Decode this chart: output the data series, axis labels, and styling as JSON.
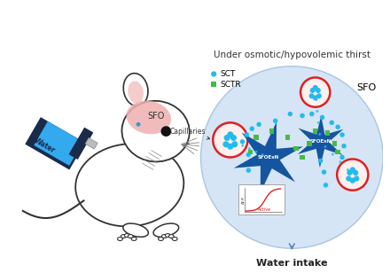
{
  "fig_width": 4.4,
  "fig_height": 3.08,
  "dpi": 100,
  "bg_color": "#ffffff",
  "title_text": "Under osmotic/hypovolemic thirst",
  "title_fontsize": 7.5,
  "sfo_label": "SFO",
  "water_intake_text": "Water intake",
  "capillaries_text": "Capillaries",
  "sfo_mouse_label": "SFO",
  "legend_sct": "SCT",
  "legend_sctr": "SCTR",
  "circle_bg_color": "#d5e5f5",
  "circle_edge_color": "#aac5e0",
  "neuron_color": "#1555a0",
  "capillary_fill": "#fff0f0",
  "capillary_edge": "#dd2222",
  "sct_dot_color": "#22bbee",
  "sctr_dot_color": "#44bb44",
  "mouse_sfo_color": "#f0b0b0",
  "water_bottle_color": "#33aaee",
  "active_curve_color": "#dd2222",
  "arrow_color": "#5588bb",
  "water_intake_fontsize": 8.0,
  "capillaries_fontsize": 5.5,
  "neuron_label_fontsize": 4.0,
  "active_label_fontsize": 4.0
}
